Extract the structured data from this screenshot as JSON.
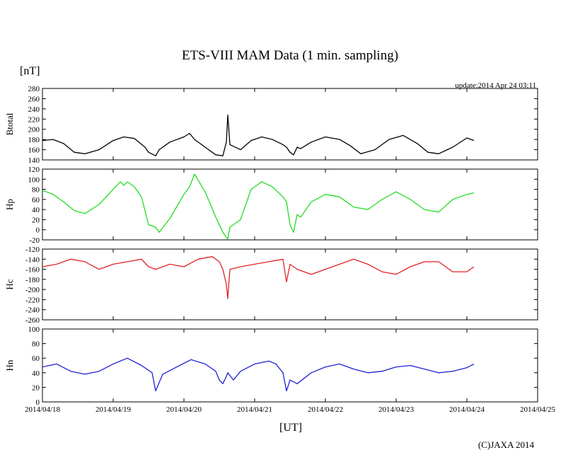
{
  "chart_data": {
    "type": "line",
    "title": "ETS-VIII MAM Data (1 min. sampling)",
    "unit_label": "[nT]",
    "update_text": "update:2014 Apr 24 03:11",
    "xlabel": "[UT]",
    "copyright": "(C)JAXA 2014",
    "x_ticks": [
      "2014/04/18",
      "2014/04/19",
      "2014/04/20",
      "2014/04/21",
      "2014/04/22",
      "2014/04/23",
      "2014/04/24",
      "2014/04/25"
    ],
    "xlim": [
      0,
      7
    ],
    "panels": [
      {
        "name": "Btotal",
        "color": "#000000",
        "ylim": [
          140,
          280
        ],
        "yticks": [
          "280",
          "260",
          "240",
          "220",
          "200",
          "180",
          "160",
          "140"
        ],
        "series": {
          "x": [
            0,
            0.15,
            0.3,
            0.45,
            0.6,
            0.8,
            1.0,
            1.15,
            1.3,
            1.45,
            1.5,
            1.6,
            1.65,
            1.8,
            2.0,
            2.08,
            2.15,
            2.3,
            2.45,
            2.55,
            2.6,
            2.62,
            2.65,
            2.8,
            2.95,
            3.1,
            3.25,
            3.4,
            3.45,
            3.5,
            3.55,
            3.6,
            3.65,
            3.8,
            4.0,
            4.2,
            4.35,
            4.5,
            4.7,
            4.9,
            5.1,
            5.3,
            5.45,
            5.6,
            5.8,
            6.0,
            6.1
          ],
          "y": [
            178,
            180,
            172,
            155,
            152,
            160,
            178,
            185,
            182,
            165,
            155,
            148,
            160,
            175,
            185,
            192,
            180,
            165,
            150,
            148,
            175,
            228,
            170,
            160,
            178,
            185,
            180,
            170,
            165,
            155,
            150,
            165,
            162,
            175,
            185,
            180,
            168,
            152,
            160,
            180,
            188,
            172,
            155,
            152,
            165,
            183,
            178
          ]
        }
      },
      {
        "name": "Hp",
        "color": "#22dd22",
        "ylim": [
          -20,
          120
        ],
        "yticks": [
          "120",
          "100",
          "80",
          "60",
          "40",
          "20",
          "0",
          "-20"
        ],
        "series": {
          "x": [
            0,
            0.15,
            0.3,
            0.45,
            0.6,
            0.8,
            1.0,
            1.1,
            1.15,
            1.2,
            1.3,
            1.4,
            1.5,
            1.6,
            1.65,
            1.8,
            2.0,
            2.08,
            2.15,
            2.3,
            2.45,
            2.55,
            2.6,
            2.62,
            2.65,
            2.8,
            2.95,
            3.1,
            3.25,
            3.4,
            3.45,
            3.5,
            3.55,
            3.6,
            3.65,
            3.8,
            4.0,
            4.2,
            4.4,
            4.6,
            4.8,
            5.0,
            5.2,
            5.4,
            5.6,
            5.8,
            6.0,
            6.1
          ],
          "y": [
            78,
            70,
            55,
            38,
            32,
            50,
            80,
            95,
            88,
            95,
            85,
            65,
            10,
            5,
            -5,
            22,
            70,
            85,
            110,
            75,
            25,
            -5,
            -15,
            -18,
            5,
            20,
            80,
            95,
            85,
            65,
            55,
            10,
            -5,
            30,
            25,
            55,
            70,
            65,
            45,
            40,
            60,
            75,
            60,
            40,
            35,
            60,
            70,
            73
          ]
        }
      },
      {
        "name": "Hc",
        "color": "#e52222",
        "ylim": [
          -260,
          -120
        ],
        "yticks": [
          "-120",
          "-140",
          "-160",
          "-180",
          "-200",
          "-220",
          "-240",
          "-260"
        ],
        "series": {
          "x": [
            0,
            0.2,
            0.4,
            0.6,
            0.8,
            1.0,
            1.2,
            1.4,
            1.5,
            1.6,
            1.8,
            2.0,
            2.2,
            2.4,
            2.5,
            2.55,
            2.6,
            2.62,
            2.65,
            2.8,
            3.0,
            3.2,
            3.4,
            3.45,
            3.5,
            3.6,
            3.8,
            4.0,
            4.2,
            4.4,
            4.6,
            4.8,
            5.0,
            5.2,
            5.4,
            5.6,
            5.8,
            6.0,
            6.1
          ],
          "y": [
            -155,
            -150,
            -140,
            -145,
            -160,
            -150,
            -145,
            -140,
            -155,
            -160,
            -150,
            -155,
            -140,
            -135,
            -145,
            -160,
            -190,
            -218,
            -160,
            -155,
            -150,
            -145,
            -140,
            -185,
            -150,
            -160,
            -170,
            -160,
            -150,
            -140,
            -150,
            -165,
            -170,
            -155,
            -145,
            -145,
            -165,
            -165,
            -155
          ]
        }
      },
      {
        "name": "Hn",
        "color": "#1f22d4",
        "ylim": [
          0,
          100
        ],
        "yticks": [
          "100",
          "80",
          "60",
          "40",
          "20",
          "0"
        ],
        "series": {
          "x": [
            0,
            0.2,
            0.4,
            0.6,
            0.8,
            1.0,
            1.2,
            1.4,
            1.55,
            1.6,
            1.7,
            1.9,
            2.1,
            2.3,
            2.45,
            2.5,
            2.55,
            2.6,
            2.62,
            2.7,
            2.8,
            3.0,
            3.2,
            3.3,
            3.4,
            3.45,
            3.5,
            3.6,
            3.8,
            4.0,
            4.2,
            4.4,
            4.6,
            4.8,
            5.0,
            5.2,
            5.4,
            5.6,
            5.8,
            6.0,
            6.1
          ],
          "y": [
            48,
            52,
            42,
            38,
            42,
            52,
            60,
            50,
            40,
            15,
            38,
            48,
            58,
            52,
            42,
            30,
            25,
            35,
            40,
            30,
            42,
            52,
            56,
            52,
            40,
            15,
            30,
            25,
            40,
            48,
            52,
            45,
            40,
            42,
            48,
            50,
            45,
            40,
            42,
            47,
            52
          ]
        }
      }
    ]
  }
}
